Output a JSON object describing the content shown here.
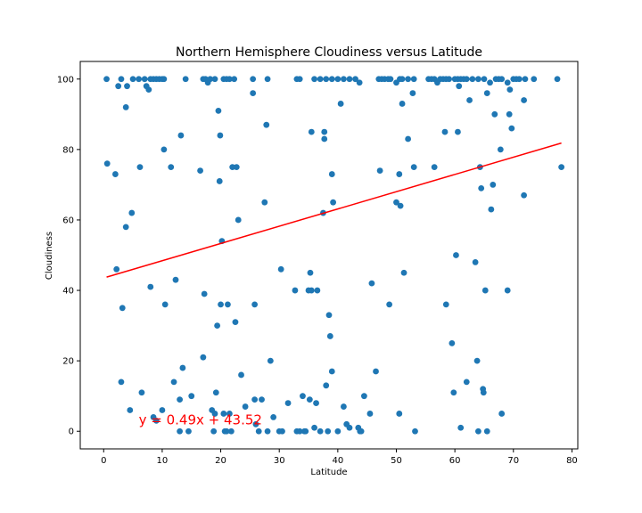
{
  "chart_data": {
    "type": "scatter",
    "title": "Northern Hemisphere Cloudiness versus Latitude",
    "xlabel": "Latitude",
    "ylabel": "Cloudiness",
    "xlim": [
      -4,
      81
    ],
    "ylim": [
      -5,
      105
    ],
    "xticks": [
      0,
      10,
      20,
      30,
      40,
      50,
      60,
      70,
      80
    ],
    "yticks": [
      0,
      20,
      40,
      60,
      80,
      100
    ],
    "grid": false,
    "marker_color": "#1f77b4",
    "regression": {
      "slope": 0.49,
      "intercept": 43.52,
      "x_range": [
        0.5,
        78.2
      ],
      "color": "#ff0000",
      "equation_text": "y = 0.49x + 43.52",
      "equation_position": [
        6,
        2
      ]
    },
    "points": [
      [
        0.5,
        100
      ],
      [
        2.5,
        98
      ],
      [
        3,
        100
      ],
      [
        4,
        98
      ],
      [
        5,
        100
      ],
      [
        6,
        100
      ],
      [
        7,
        100
      ],
      [
        7.3,
        98
      ],
      [
        7.7,
        97
      ],
      [
        8,
        100
      ],
      [
        8.5,
        100
      ],
      [
        9,
        100
      ],
      [
        9.5,
        100
      ],
      [
        10,
        100
      ],
      [
        10.3,
        100
      ],
      [
        14,
        100
      ],
      [
        17,
        100
      ],
      [
        17.4,
        100
      ],
      [
        17.8,
        99
      ],
      [
        18.2,
        100
      ],
      [
        19,
        100
      ],
      [
        20.5,
        100
      ],
      [
        21,
        100
      ],
      [
        21.5,
        100
      ],
      [
        22.3,
        100
      ],
      [
        25.5,
        100
      ],
      [
        28,
        100
      ],
      [
        33,
        100
      ],
      [
        33.5,
        100
      ],
      [
        36,
        100
      ],
      [
        37,
        100
      ],
      [
        38,
        100
      ],
      [
        39,
        100
      ],
      [
        40,
        100
      ],
      [
        41,
        100
      ],
      [
        42,
        100
      ],
      [
        43,
        100
      ],
      [
        43.7,
        99
      ],
      [
        47,
        100
      ],
      [
        47.5,
        100
      ],
      [
        48,
        100
      ],
      [
        48.6,
        100
      ],
      [
        49,
        100
      ],
      [
        50,
        99
      ],
      [
        50.6,
        100
      ],
      [
        51,
        100
      ],
      [
        52,
        100
      ],
      [
        53,
        100
      ],
      [
        55.5,
        100
      ],
      [
        56,
        100
      ],
      [
        56.5,
        100
      ],
      [
        57,
        99
      ],
      [
        57.5,
        100
      ],
      [
        58,
        100
      ],
      [
        58.5,
        100
      ],
      [
        59,
        100
      ],
      [
        60,
        100
      ],
      [
        60.5,
        100
      ],
      [
        61,
        100
      ],
      [
        61.5,
        100
      ],
      [
        62,
        100
      ],
      [
        63,
        100
      ],
      [
        64,
        100
      ],
      [
        65,
        100
      ],
      [
        66,
        99
      ],
      [
        67,
        100
      ],
      [
        67.5,
        100
      ],
      [
        68,
        100
      ],
      [
        69,
        99
      ],
      [
        70,
        100
      ],
      [
        70.5,
        100
      ],
      [
        71,
        100
      ],
      [
        72,
        100
      ],
      [
        73.5,
        100
      ],
      [
        77.5,
        100
      ],
      [
        0.6,
        76
      ],
      [
        2,
        73
      ],
      [
        2.2,
        46
      ],
      [
        3.2,
        35
      ],
      [
        3.8,
        58
      ],
      [
        3.8,
        92
      ],
      [
        4.8,
        62
      ],
      [
        6.2,
        75
      ],
      [
        6.5,
        11
      ],
      [
        3,
        14
      ],
      [
        4.5,
        6
      ],
      [
        8,
        41
      ],
      [
        8.5,
        4
      ],
      [
        9,
        3
      ],
      [
        10,
        6
      ],
      [
        10.3,
        80
      ],
      [
        10.5,
        36
      ],
      [
        11.5,
        75
      ],
      [
        12,
        14
      ],
      [
        12.3,
        43
      ],
      [
        13,
        0
      ],
      [
        13,
        9
      ],
      [
        13.2,
        84
      ],
      [
        13.5,
        18
      ],
      [
        14.5,
        0
      ],
      [
        15,
        10
      ],
      [
        16.5,
        74
      ],
      [
        17,
        21
      ],
      [
        17.2,
        39
      ],
      [
        18.5,
        6
      ],
      [
        18.8,
        0
      ],
      [
        19,
        5
      ],
      [
        19.2,
        11
      ],
      [
        19.4,
        30
      ],
      [
        19.6,
        91
      ],
      [
        19.8,
        71
      ],
      [
        19.9,
        84
      ],
      [
        20,
        36
      ],
      [
        20.2,
        54
      ],
      [
        20.5,
        5
      ],
      [
        20.7,
        0
      ],
      [
        21,
        0
      ],
      [
        21.2,
        36
      ],
      [
        21.5,
        5
      ],
      [
        21.8,
        0
      ],
      [
        22,
        75
      ],
      [
        22.5,
        31
      ],
      [
        22.7,
        75
      ],
      [
        23,
        60
      ],
      [
        23.5,
        16
      ],
      [
        24.2,
        7
      ],
      [
        25.5,
        96
      ],
      [
        25.8,
        36
      ],
      [
        25.8,
        9
      ],
      [
        26,
        2
      ],
      [
        26.5,
        0
      ],
      [
        27,
        9
      ],
      [
        27.5,
        65
      ],
      [
        27.8,
        87
      ],
      [
        28,
        0
      ],
      [
        28.5,
        20
      ],
      [
        29,
        4
      ],
      [
        30,
        0
      ],
      [
        30.3,
        46
      ],
      [
        30.5,
        0
      ],
      [
        31.5,
        8
      ],
      [
        32.7,
        40
      ],
      [
        33,
        0
      ],
      [
        33.5,
        0
      ],
      [
        34,
        10
      ],
      [
        34.3,
        0
      ],
      [
        34.5,
        0
      ],
      [
        35,
        40
      ],
      [
        35.2,
        9
      ],
      [
        35.5,
        40
      ],
      [
        35.3,
        45
      ],
      [
        35.5,
        85
      ],
      [
        36,
        1
      ],
      [
        36.3,
        8
      ],
      [
        36.5,
        40
      ],
      [
        37,
        0
      ],
      [
        37.5,
        62
      ],
      [
        37.7,
        85
      ],
      [
        37.7,
        83
      ],
      [
        38,
        13
      ],
      [
        38.3,
        0
      ],
      [
        38.5,
        33
      ],
      [
        38.7,
        27
      ],
      [
        39,
        73
      ],
      [
        39,
        17
      ],
      [
        39.2,
        65
      ],
      [
        40,
        0
      ],
      [
        40.5,
        93
      ],
      [
        41,
        7
      ],
      [
        41.5,
        2
      ],
      [
        42,
        1
      ],
      [
        43.5,
        1
      ],
      [
        43.8,
        0
      ],
      [
        44,
        0
      ],
      [
        44.5,
        10
      ],
      [
        45.5,
        5
      ],
      [
        45.8,
        42
      ],
      [
        46.5,
        17
      ],
      [
        47.2,
        74
      ],
      [
        48.8,
        36
      ],
      [
        50,
        65
      ],
      [
        50.5,
        5
      ],
      [
        50.5,
        73
      ],
      [
        50.7,
        64
      ],
      [
        51,
        93
      ],
      [
        51.3,
        45
      ],
      [
        52,
        83
      ],
      [
        52.8,
        96
      ],
      [
        53,
        75
      ],
      [
        53.2,
        0
      ],
      [
        56.5,
        75
      ],
      [
        58.3,
        85
      ],
      [
        58.5,
        36
      ],
      [
        59.5,
        25
      ],
      [
        59.8,
        11
      ],
      [
        60.2,
        50
      ],
      [
        60.5,
        85
      ],
      [
        60.7,
        98
      ],
      [
        61,
        1
      ],
      [
        62,
        14
      ],
      [
        62.5,
        94
      ],
      [
        63.5,
        48
      ],
      [
        63.8,
        20
      ],
      [
        64,
        0
      ],
      [
        64.3,
        75
      ],
      [
        64.5,
        69
      ],
      [
        64.8,
        12
      ],
      [
        64.9,
        11
      ],
      [
        65.2,
        40
      ],
      [
        65.5,
        96
      ],
      [
        65.5,
        0
      ],
      [
        66.2,
        63
      ],
      [
        66.5,
        70
      ],
      [
        66.8,
        90
      ],
      [
        67.8,
        80
      ],
      [
        68,
        5
      ],
      [
        69,
        40
      ],
      [
        69.3,
        90
      ],
      [
        69.4,
        97
      ],
      [
        69.7,
        86
      ],
      [
        71.8,
        94
      ],
      [
        71.8,
        67
      ],
      [
        78.2,
        75
      ]
    ]
  }
}
